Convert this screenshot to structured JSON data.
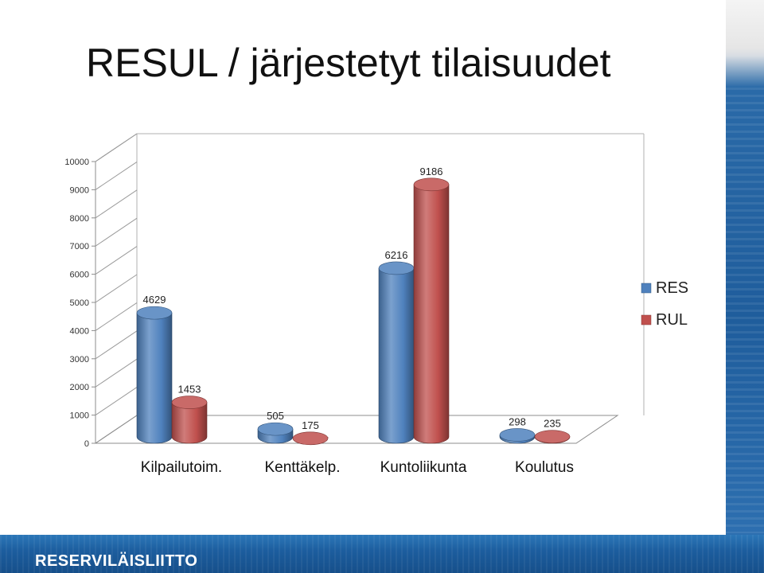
{
  "slide": {
    "title": "RESUL / järjestetyt tilaisuudet",
    "logo_text": "RESERVILÄISLIITTO"
  },
  "colors": {
    "res": "#4f81bd",
    "rul": "#c0504d",
    "band": "#1f5d9c"
  },
  "chart_data": {
    "type": "bar",
    "style": "3d-cylinder",
    "categories": [
      "Kilpailutoim.",
      "Kenttäkelp.",
      "Kuntoliikunta",
      "Koulutus"
    ],
    "series": [
      {
        "name": "RES",
        "values": [
          4629,
          505,
          6216,
          298
        ],
        "color": "#4f81bd"
      },
      {
        "name": "RUL",
        "values": [
          1453,
          175,
          9186,
          235
        ],
        "color": "#c0504d"
      }
    ],
    "data_labels": [
      [
        "4629",
        "505",
        "6216",
        "298"
      ],
      [
        "1453",
        "175",
        "9186",
        "235"
      ]
    ],
    "yticks": [
      "0",
      "1000",
      "2000",
      "3000",
      "4000",
      "5000",
      "6000",
      "7000",
      "8000",
      "9000",
      "10000"
    ],
    "ylim": [
      0,
      10000
    ],
    "grid": false,
    "legend_position": "right"
  }
}
